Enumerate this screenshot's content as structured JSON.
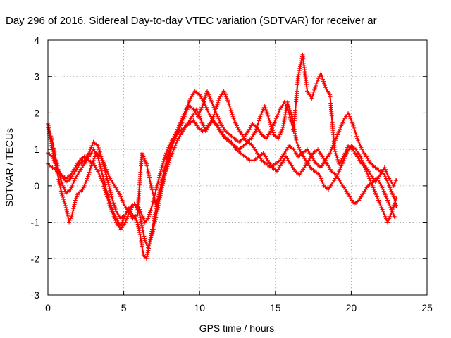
{
  "chart_data": {
    "type": "line",
    "title": "Day 296 of 2016, Sidereal Day-to-day VTEC variation (SDTVAR) for receiver ar",
    "xlabel": "GPS time / hours",
    "ylabel": "SDTVAR / TECUs",
    "xlim": [
      0,
      25
    ],
    "ylim": [
      -3,
      4
    ],
    "xticks": [
      "0",
      "5",
      "10",
      "15",
      "20",
      "25"
    ],
    "yticks": [
      "-3",
      "-2",
      "-1",
      "0",
      "1",
      "2",
      "3",
      "4"
    ],
    "grid": true,
    "legend": "none",
    "marker": "plus",
    "color": "#ff0000",
    "series": [
      {
        "x": [
          0.0,
          0.3,
          0.6,
          0.9,
          1.2,
          1.5,
          1.8,
          2.1,
          2.4,
          2.7,
          3.0,
          3.3,
          3.6,
          3.9,
          4.2,
          4.5,
          4.8,
          5.0,
          5.3,
          5.6,
          5.9,
          6.1,
          6.3,
          6.5,
          6.7,
          7.0,
          7.3,
          7.6,
          7.9,
          8.2,
          8.5,
          8.8,
          9.1,
          9.4,
          9.7,
          10.0,
          10.3,
          10.6,
          10.9,
          11.2,
          11.5,
          11.8,
          12.1,
          12.4,
          12.7,
          13.0,
          13.3,
          13.6,
          13.9,
          14.2,
          14.5,
          14.8,
          15.1,
          15.4,
          15.7,
          16.0,
          16.3,
          16.6,
          16.9,
          17.2,
          17.5,
          17.8,
          18.1,
          18.4,
          18.7,
          19.0,
          19.3,
          19.6,
          19.9,
          20.2,
          20.5,
          20.8,
          21.1,
          21.4,
          21.7,
          22.0,
          22.3,
          22.6,
          22.9
        ],
        "y": [
          1.7,
          1.2,
          0.6,
          0.1,
          -0.2,
          -0.1,
          0.2,
          0.4,
          0.6,
          0.8,
          1.0,
          0.8,
          0.3,
          -0.2,
          -0.6,
          -0.9,
          -1.1,
          -0.9,
          -0.6,
          -0.8,
          -1.0,
          -1.4,
          -1.9,
          -2.0,
          -1.6,
          -0.9,
          -0.3,
          0.3,
          0.8,
          1.2,
          1.5,
          1.8,
          2.1,
          2.4,
          2.6,
          2.5,
          2.3,
          2.0,
          1.8,
          1.6,
          1.4,
          1.3,
          1.2,
          1.0,
          0.9,
          0.8,
          0.7,
          0.7,
          0.8,
          0.9,
          0.7,
          0.5,
          0.4,
          0.6,
          0.8,
          0.6,
          0.4,
          0.3,
          0.5,
          0.7,
          0.9,
          1.0,
          0.8,
          0.6,
          0.4,
          0.3,
          0.1,
          -0.1,
          -0.3,
          -0.5,
          -0.4,
          -0.2,
          0.0,
          0.1,
          0.2,
          0.0,
          -0.3,
          -0.6,
          -0.9
        ]
      },
      {
        "x": [
          0.0,
          0.3,
          0.6,
          0.9,
          1.2,
          1.5,
          1.8,
          2.1,
          2.4,
          2.7,
          3.0,
          3.3,
          3.6,
          3.9,
          4.2,
          4.5,
          4.8,
          5.1,
          5.4,
          5.7,
          6.0,
          6.2,
          6.4,
          6.6,
          6.9,
          7.2,
          7.5,
          7.8,
          8.1,
          8.4,
          8.7,
          9.0,
          9.3,
          9.6,
          9.9,
          10.2,
          10.5,
          10.8,
          11.1,
          11.4,
          11.7,
          12.0,
          12.3,
          12.6,
          12.9,
          13.2,
          13.5,
          13.8,
          14.1,
          14.4,
          14.7,
          15.0,
          15.3,
          15.6,
          15.9,
          16.2,
          16.5,
          16.8,
          17.1,
          17.4,
          17.7,
          18.0,
          18.3,
          18.6,
          18.9,
          19.2,
          19.5,
          19.8,
          20.1,
          20.4,
          20.7,
          21.0,
          21.3,
          21.6,
          21.9,
          22.2,
          22.5,
          22.8,
          23.0
        ],
        "y": [
          0.9,
          0.8,
          0.5,
          0.3,
          0.1,
          0.2,
          0.4,
          0.6,
          0.7,
          0.9,
          1.2,
          1.1,
          0.7,
          0.2,
          -0.3,
          -0.7,
          -0.9,
          -0.8,
          -0.6,
          -0.5,
          -0.7,
          -1.1,
          -1.5,
          -1.7,
          -1.3,
          -0.7,
          -0.1,
          0.5,
          1.0,
          1.3,
          1.6,
          1.9,
          2.2,
          2.1,
          1.9,
          2.2,
          2.6,
          2.3,
          2.0,
          1.7,
          1.5,
          1.4,
          1.3,
          1.2,
          1.3,
          1.5,
          1.7,
          1.6,
          1.4,
          1.3,
          1.5,
          1.8,
          2.1,
          2.3,
          2.0,
          1.5,
          3.0,
          3.6,
          2.6,
          2.4,
          2.8,
          3.1,
          2.7,
          2.5,
          1.0,
          0.6,
          0.8,
          1.1,
          1.0,
          0.8,
          0.6,
          0.5,
          0.3,
          0.1,
          0.3,
          0.5,
          0.2,
          0.0,
          0.2
        ]
      },
      {
        "x": [
          0.0,
          0.3,
          0.6,
          0.9,
          1.2,
          1.5,
          1.8,
          2.1,
          2.4,
          2.7,
          3.0,
          3.3,
          3.6,
          3.9,
          4.2,
          4.5,
          4.8,
          5.1,
          5.4,
          5.7,
          6.0,
          6.2,
          6.4,
          6.6,
          6.9,
          7.2,
          7.5,
          7.8,
          8.1,
          8.4,
          8.7,
          9.0,
          9.3,
          9.6,
          9.9,
          10.2,
          10.5,
          10.8,
          11.1,
          11.4,
          11.7,
          12.0,
          12.3,
          12.6,
          12.9,
          13.2,
          13.5,
          13.8,
          14.1,
          14.4,
          14.7,
          15.0,
          15.3,
          15.6,
          15.9,
          16.2,
          16.5,
          16.8,
          17.1,
          17.4,
          17.7,
          18.0,
          18.3,
          18.6,
          18.9,
          19.2,
          19.5,
          19.8,
          20.1,
          20.4,
          20.7,
          21.0,
          21.3,
          21.6,
          21.9,
          22.2,
          22.5,
          22.8,
          23.0
        ],
        "y": [
          0.6,
          0.5,
          0.4,
          0.3,
          0.2,
          0.3,
          0.5,
          0.7,
          0.8,
          0.7,
          0.6,
          0.4,
          0.1,
          -0.3,
          -0.7,
          -1.0,
          -1.2,
          -1.0,
          -0.7,
          -0.5,
          -0.6,
          -0.8,
          -1.0,
          -0.9,
          -0.5,
          0.0,
          0.5,
          0.9,
          1.2,
          1.4,
          1.5,
          1.6,
          1.7,
          1.8,
          1.6,
          1.5,
          1.6,
          1.8,
          1.7,
          1.5,
          1.3,
          1.2,
          1.1,
          1.0,
          1.1,
          1.2,
          1.1,
          0.9,
          0.7,
          0.6,
          0.5,
          0.6,
          0.7,
          0.9,
          1.1,
          1.0,
          0.8,
          0.9,
          1.0,
          0.8,
          0.6,
          0.5,
          0.7,
          0.9,
          1.2,
          1.5,
          1.8,
          2.0,
          1.7,
          1.3,
          1.0,
          0.8,
          0.6,
          0.5,
          0.4,
          0.3,
          0.0,
          -0.3,
          -0.6
        ]
      },
      {
        "x": [
          0.0,
          0.3,
          0.6,
          0.9,
          1.2,
          1.4,
          1.6,
          1.8,
          2.0,
          2.3,
          2.6,
          2.9,
          3.2,
          3.5,
          3.8,
          4.1,
          4.4,
          4.7,
          5.0,
          5.3,
          5.6,
          5.9,
          6.2,
          6.5,
          6.8,
          7.1,
          7.4,
          7.7,
          8.0,
          8.3,
          8.6,
          8.9,
          9.2,
          9.5,
          9.8,
          10.1,
          10.4,
          10.7,
          11.0,
          11.3,
          11.6,
          11.9,
          12.2,
          12.5,
          12.8,
          13.1,
          13.4,
          13.7,
          14.0,
          14.3,
          14.6,
          14.9,
          15.2,
          15.5,
          15.8,
          16.1,
          16.4,
          16.7,
          17.0,
          17.3,
          17.6,
          17.9,
          18.2,
          18.5,
          18.8,
          19.1,
          19.4,
          19.7,
          20.0,
          20.3,
          20.6,
          20.9,
          21.2,
          21.5,
          21.8,
          22.1,
          22.4,
          22.7,
          23.0
        ],
        "y": [
          1.6,
          1.0,
          0.4,
          -0.2,
          -0.6,
          -1.0,
          -0.8,
          -0.4,
          -0.2,
          -0.1,
          0.2,
          0.6,
          0.9,
          0.8,
          0.5,
          0.2,
          0.0,
          -0.2,
          -0.5,
          -0.7,
          -0.9,
          -0.8,
          0.9,
          0.6,
          0.0,
          -0.5,
          -0.2,
          0.3,
          0.7,
          1.0,
          1.3,
          1.5,
          1.7,
          1.9,
          2.1,
          1.8,
          1.5,
          1.7,
          2.0,
          2.4,
          2.6,
          2.3,
          1.9,
          1.6,
          1.4,
          1.2,
          1.3,
          1.5,
          1.9,
          2.2,
          1.8,
          1.4,
          1.3,
          1.6,
          2.3,
          1.9,
          1.2,
          0.9,
          0.7,
          0.5,
          0.4,
          0.3,
          0.0,
          -0.1,
          0.1,
          0.3,
          0.6,
          0.9,
          1.1,
          1.0,
          0.8,
          0.5,
          0.2,
          -0.1,
          -0.4,
          -0.7,
          -1.0,
          -0.7,
          -0.3
        ]
      }
    ]
  }
}
